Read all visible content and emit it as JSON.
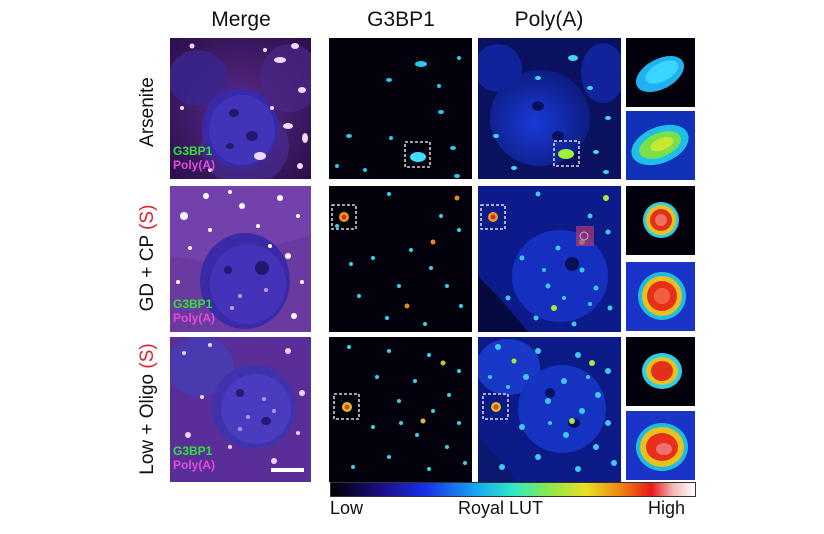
{
  "columns": {
    "merge": "Merge",
    "g3bp1": "G3BP1",
    "polya": "Poly(A)"
  },
  "rows": [
    {
      "label_main": "Arsenite",
      "label_suffix": "",
      "legend_g3bp1": "G3BP1",
      "legend_polya": "Poly(A)"
    },
    {
      "label_main": "GD + CP ",
      "label_suffix": "(S)",
      "legend_g3bp1": "G3BP1",
      "legend_polya": "Poly(A)"
    },
    {
      "label_main": "Low + Oligo ",
      "label_suffix": "(S)",
      "legend_g3bp1": "G3BP1",
      "legend_polya": "Poly(A)"
    }
  ],
  "lut": {
    "low": "Low",
    "name": "Royal LUT",
    "high": "High"
  },
  "colors": {
    "highlight_red": "#e0202a",
    "legend_green": "#31e23a",
    "legend_magenta": "#e44bdc"
  }
}
